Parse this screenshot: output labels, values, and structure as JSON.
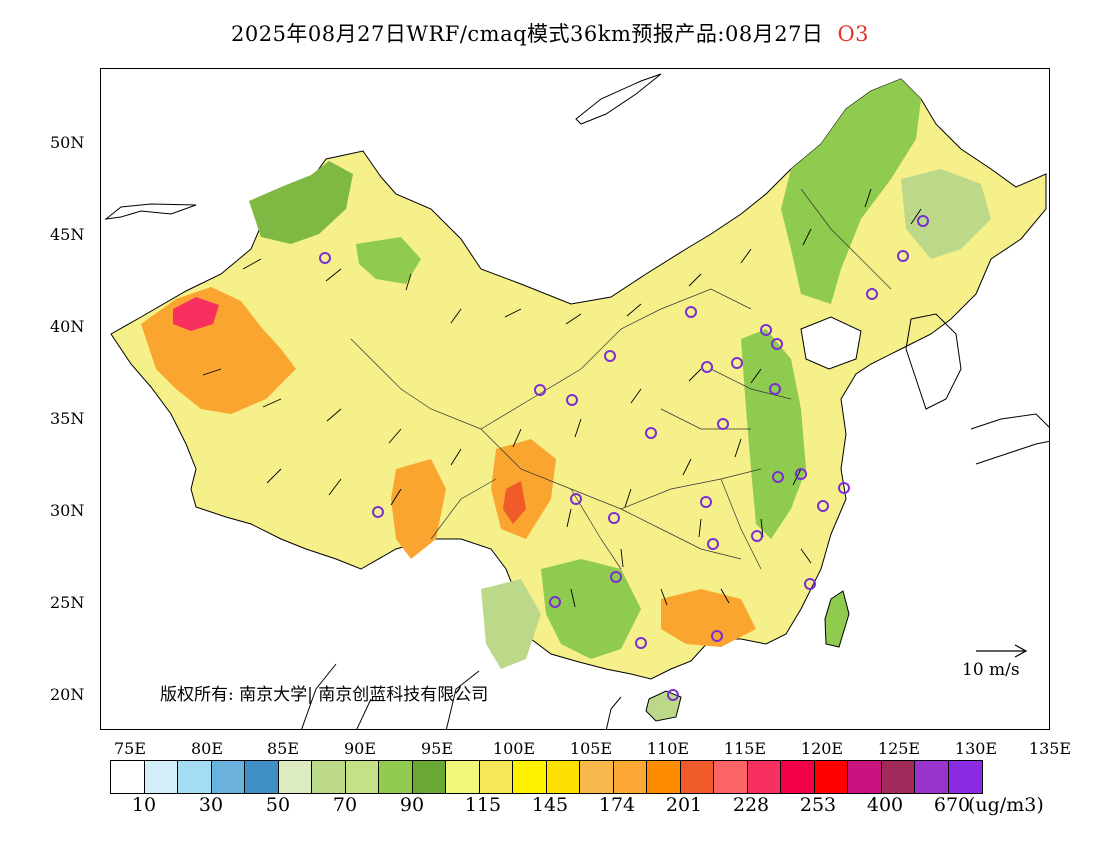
{
  "header": {
    "title": "2025年08月27日WRF/cmaq模式36km预报产品:08月27日",
    "pollutant": "O3",
    "pollutant_color": "#e8322c"
  },
  "map": {
    "lat_labels": [
      "50N",
      "45N",
      "40N",
      "35N",
      "30N",
      "25N",
      "20N"
    ],
    "lon_labels": [
      "75E",
      "80E",
      "85E",
      "90E",
      "95E",
      "100E",
      "105E",
      "110E",
      "115E",
      "120E",
      "125E",
      "130E",
      "135E"
    ],
    "copyright": "版权所有: 南京大学| 南京创蓝科技有限公司",
    "wind_scale_label": "10 m/s",
    "marker_color": "#7a2fd0"
  },
  "colorbar": {
    "colors": [
      "#ffffff",
      "#d4eefa",
      "#a4dcf4",
      "#6bb1de",
      "#3f8ec6",
      "#dcebc0",
      "#bcd98a",
      "#c5e185",
      "#8fcb4e",
      "#6aa834",
      "#f2f97a",
      "#f5e65a",
      "#fff200",
      "#fee000",
      "#f9b84c",
      "#fba934",
      "#fd8c00",
      "#f15a29",
      "#fd6467",
      "#f73060",
      "#f20048",
      "#ff0000",
      "#c91480",
      "#a02a5a",
      "#9933cc",
      "#8a2be2"
    ],
    "labels": [
      "10",
      "30",
      "50",
      "70",
      "90",
      "115",
      "145",
      "174",
      "201",
      "228",
      "253",
      "400",
      "670"
    ],
    "unit": "(ug/m3)"
  }
}
